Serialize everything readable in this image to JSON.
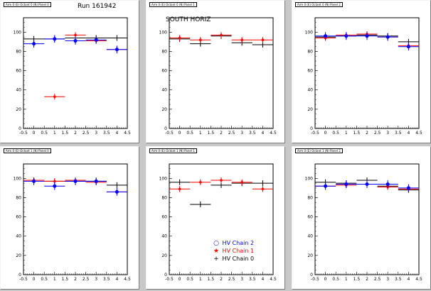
{
  "colors": {
    "chain2": "#0000ff",
    "chain1": "#ff0000",
    "chain0": "#000000"
  },
  "legend": {
    "entries": [
      {
        "key": "chain2",
        "symbol": "circle-icon",
        "label": "HV Chain 2"
      },
      {
        "key": "chain1",
        "symbol": "star-icon",
        "label": "HV Chain 1"
      },
      {
        "key": "chain0",
        "symbol": "cross-icon",
        "label": "HV Chain 0"
      }
    ]
  },
  "chart_data": [
    {
      "type": "scatter",
      "title": "Run 161942",
      "pad_title": "Arm 0 (E) Octant 0 (N) Panel 0",
      "xlim": [
        -0.5,
        4.5
      ],
      "ylim": [
        0,
        115
      ],
      "xticks": [
        "-0.5",
        "0",
        "0.5",
        "1",
        "1.5",
        "2",
        "2.5",
        "3",
        "3.5",
        "4",
        "4.5"
      ],
      "yticks": [
        "0",
        "20",
        "40",
        "60",
        "80",
        "100"
      ],
      "series": [
        {
          "name": "HV Chain 2",
          "x": [
            0,
            1,
            2,
            3,
            4
          ],
          "y": [
            88,
            93,
            91,
            92,
            82
          ]
        },
        {
          "name": "HV Chain 1",
          "x": [
            1,
            2,
            3,
            4
          ],
          "y": [
            33,
            97,
            91,
            82
          ]
        },
        {
          "name": "HV Chain 0",
          "x": [
            0,
            1,
            2,
            3,
            4
          ],
          "y": [
            93,
            93,
            94,
            94,
            94
          ]
        }
      ]
    },
    {
      "type": "scatter",
      "title": "SOUTH HORIZ",
      "pad_title": "Arm 0 (E) Octant 0 (N) Panel 1",
      "xlim": [
        -0.5,
        4.5
      ],
      "ylim": [
        0,
        115
      ],
      "xticks": [
        "-0.5",
        "0",
        "0.5",
        "1",
        "1.5",
        "2",
        "2.5",
        "3",
        "3.5",
        "4",
        "4.5"
      ],
      "yticks": [
        "0",
        "20",
        "40",
        "60",
        "80",
        "100"
      ],
      "series": [
        {
          "name": "HV Chain 2",
          "x": [],
          "y": []
        },
        {
          "name": "HV Chain 1",
          "x": [
            0,
            1,
            2,
            3,
            4
          ],
          "y": [
            94,
            92,
            97,
            92,
            92
          ]
        },
        {
          "name": "HV Chain 0",
          "x": [
            0,
            1,
            2,
            3,
            4
          ],
          "y": [
            93,
            88,
            96,
            89,
            87
          ]
        }
      ]
    },
    {
      "type": "scatter",
      "title": "",
      "pad_title": "Arm 0 (E) Octant 0 (N) Panel 2",
      "xlim": [
        -0.5,
        4.5
      ],
      "ylim": [
        0,
        115
      ],
      "xticks": [
        "-0.5",
        "0",
        "0.5",
        "1",
        "1.5",
        "2",
        "2.5",
        "3",
        "3.5",
        "4",
        "4.5"
      ],
      "yticks": [
        "0",
        "20",
        "40",
        "60",
        "80",
        "100"
      ],
      "series": [
        {
          "name": "HV Chain 2",
          "x": [
            0,
            1,
            2,
            3,
            4
          ],
          "y": [
            96,
            96,
            96,
            95,
            85
          ]
        },
        {
          "name": "HV Chain 1",
          "x": [
            0,
            1,
            2,
            3,
            4
          ],
          "y": [
            94,
            97,
            98,
            95,
            86
          ]
        },
        {
          "name": "HV Chain 0",
          "x": [
            0,
            1,
            2,
            3,
            4
          ],
          "y": [
            95,
            96,
            97,
            96,
            90
          ]
        }
      ]
    },
    {
      "type": "scatter",
      "title": "",
      "pad_title": "Arm 0 (E) Octant 1 (N) Panel 0",
      "xlim": [
        -0.5,
        4.5
      ],
      "ylim": [
        0,
        115
      ],
      "xticks": [
        "-0.5",
        "0",
        "0.5",
        "1",
        "1.5",
        "2",
        "2.5",
        "3",
        "3.5",
        "4",
        "4.5"
      ],
      "yticks": [
        "0",
        "20",
        "40",
        "60",
        "80",
        "100"
      ],
      "series": [
        {
          "name": "HV Chain 2",
          "x": [
            0,
            1,
            2,
            3,
            4
          ],
          "y": [
            97,
            92,
            97,
            97,
            86
          ]
        },
        {
          "name": "HV Chain 1",
          "x": [
            0,
            1,
            2,
            3,
            4
          ],
          "y": [
            98,
            97,
            98,
            96,
            86
          ]
        },
        {
          "name": "HV Chain 0",
          "x": [
            0,
            1,
            2,
            3,
            4
          ],
          "y": [
            98,
            97,
            97,
            97,
            93
          ]
        }
      ]
    },
    {
      "type": "scatter",
      "title": "",
      "pad_title": "Arm 0 (E) Octant 1 (N) Panel 1",
      "xlim": [
        -0.5,
        4.5
      ],
      "ylim": [
        0,
        115
      ],
      "xticks": [
        "-0.5",
        "0",
        "0.5",
        "1",
        "1.5",
        "2",
        "2.5",
        "3",
        "3.5",
        "4",
        "4.5"
      ],
      "yticks": [
        "0",
        "20",
        "40",
        "60",
        "80",
        "100"
      ],
      "series": [
        {
          "name": "HV Chain 2",
          "x": [],
          "y": []
        },
        {
          "name": "HV Chain 1",
          "x": [
            0,
            1,
            2,
            3,
            4
          ],
          "y": [
            89,
            96,
            98,
            96,
            89
          ]
        },
        {
          "name": "HV Chain 0",
          "x": [
            0,
            1,
            2,
            3,
            4
          ],
          "y": [
            96,
            73,
            93,
            95,
            95
          ]
        }
      ]
    },
    {
      "type": "scatter",
      "title": "",
      "pad_title": "Arm 0 (E) Octant 1 (N) Panel 2",
      "xlim": [
        -0.5,
        4.5
      ],
      "ylim": [
        0,
        115
      ],
      "xticks": [
        "-0.5",
        "0",
        "0.5",
        "1",
        "1.5",
        "2",
        "2.5",
        "3",
        "3.5",
        "4",
        "4.5"
      ],
      "yticks": [
        "0",
        "20",
        "40",
        "60",
        "80",
        "100"
      ],
      "series": [
        {
          "name": "HV Chain 2",
          "x": [
            0,
            1,
            2,
            3,
            4
          ],
          "y": [
            92,
            94,
            94,
            94,
            90
          ]
        },
        {
          "name": "HV Chain 1",
          "x": [
            0,
            1,
            2,
            3,
            4
          ],
          "y": [
            92,
            93,
            94,
            91,
            89
          ]
        },
        {
          "name": "HV Chain 0",
          "x": [
            0,
            1,
            2,
            3,
            4
          ],
          "y": [
            96,
            95,
            98,
            92,
            88
          ]
        }
      ]
    }
  ]
}
